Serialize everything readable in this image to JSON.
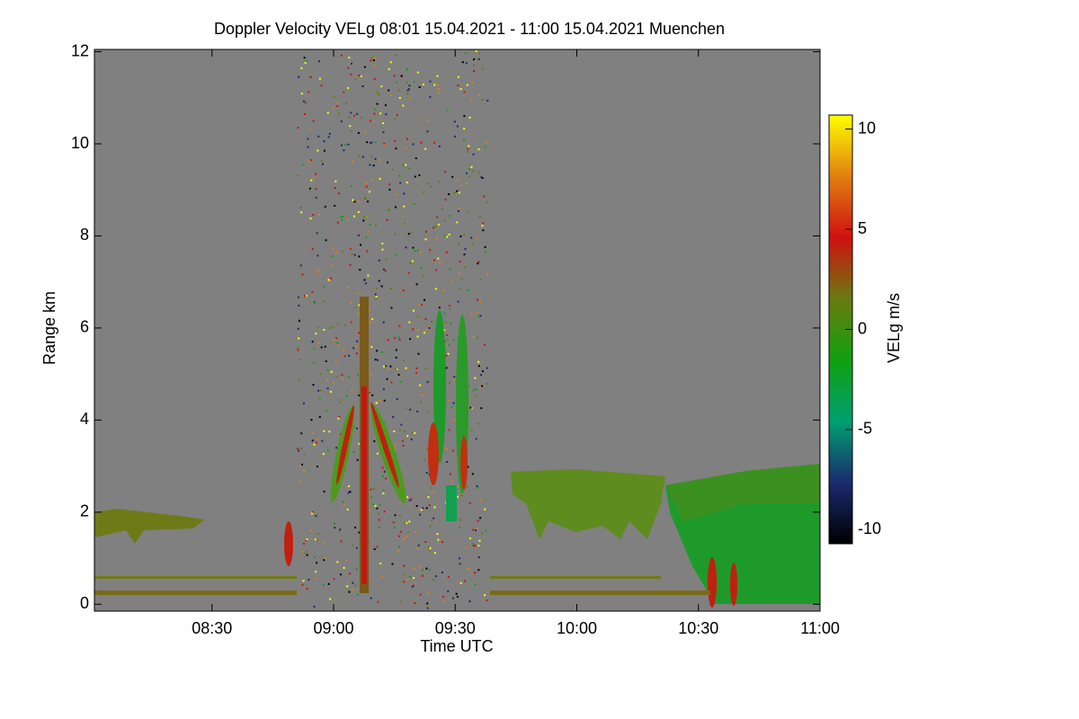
{
  "chart_data": {
    "type": "heatmap",
    "title": "Doppler Velocity VELg   08:01 15.04.2021 - 11:00 15.04.2021 Muenchen",
    "x_label": "Time UTC",
    "y_label": "Range km",
    "xlim": [
      8.0167,
      11.0
    ],
    "xticks": [
      {
        "value": 8.5,
        "label": "08:30"
      },
      {
        "value": 9.0,
        "label": "09:00"
      },
      {
        "value": 9.5,
        "label": "09:30"
      },
      {
        "value": 10.0,
        "label": "10:00"
      },
      {
        "value": 10.5,
        "label": "10:30"
      },
      {
        "value": 11.0,
        "label": "11:00"
      }
    ],
    "ylim": [
      -0.15,
      12.05
    ],
    "yticks": [
      0,
      2,
      4,
      6,
      8,
      10,
      12
    ],
    "colorbar": {
      "label": "VELg m/s",
      "lim": [
        -10.7,
        10.7
      ],
      "ticks": [
        -10,
        -5,
        0,
        5,
        10
      ],
      "colormap": [
        "#000000",
        "#1a2a6e",
        "#00a070",
        "#10a010",
        "#6a7a10",
        "#d01010",
        "#e08010",
        "#ffff00"
      ]
    }
  }
}
